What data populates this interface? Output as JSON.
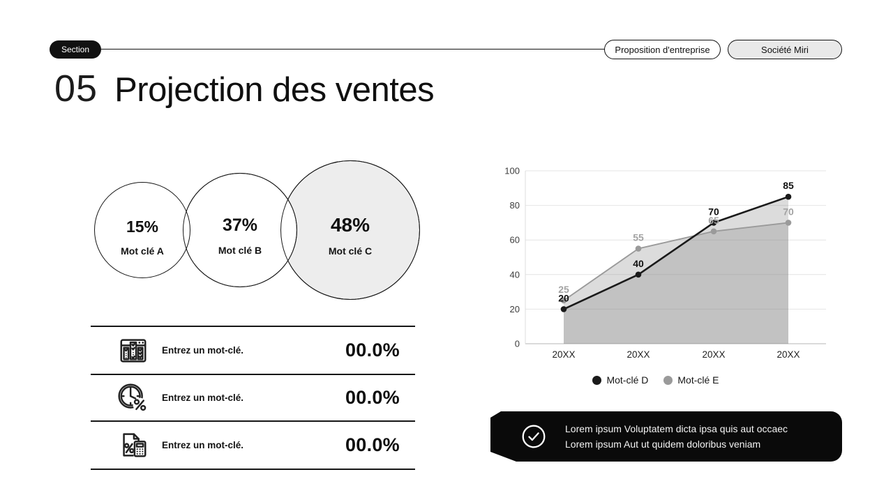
{
  "header": {
    "section_label": "Section",
    "pill_primary": "Proposition d'entreprise",
    "pill_secondary": "Société Miri"
  },
  "title": {
    "number": "05",
    "text": "Projection des ventes"
  },
  "bubbles": [
    {
      "value": "15%",
      "label": "Mot clé A"
    },
    {
      "value": "37%",
      "label": "Mot clé B"
    },
    {
      "value": "48%",
      "label": "Mot clé C"
    }
  ],
  "keyword_rows": [
    {
      "icon": "calendar-checklist-icon",
      "label": "Entrez un mot-clé.",
      "value": "00.0%"
    },
    {
      "icon": "clock-percent-icon",
      "label": "Entrez un mot-clé.",
      "value": "00.0%"
    },
    {
      "icon": "document-calculator-icon",
      "label": "Entrez un mot-clé.",
      "value": "00.0%"
    }
  ],
  "chart_data": {
    "type": "area",
    "x": [
      "20XX",
      "20XX",
      "20XX",
      "20XX"
    ],
    "series": [
      {
        "name": "Mot-clé D",
        "values": [
          20,
          40,
          70,
          85
        ],
        "color": "#1a1a1a",
        "label_color": "#111111"
      },
      {
        "name": "Mot-clé E",
        "values": [
          25,
          55,
          65,
          70
        ],
        "color": "#9a9a9a",
        "label_color": "#a3a3a3"
      }
    ],
    "ylim": [
      0,
      100
    ],
    "yticks": [
      0,
      20,
      40,
      60,
      80,
      100
    ],
    "grid": true,
    "legend_position": "bottom",
    "area_fill": "#808080",
    "area_opacity": 0.28
  },
  "callout": {
    "icon": "check-circle-icon",
    "line1": "Lorem ipsum Voluptatem dicta ipsa quis aut occaec",
    "line2": "Lorem ipsum Aut ut quidem doloribus veniam"
  },
  "colors": {
    "ink": "#111111",
    "pill_fill": "#e9e9e9",
    "bubble_fill": "#ededed",
    "callout_bg": "#0a0a0a"
  }
}
